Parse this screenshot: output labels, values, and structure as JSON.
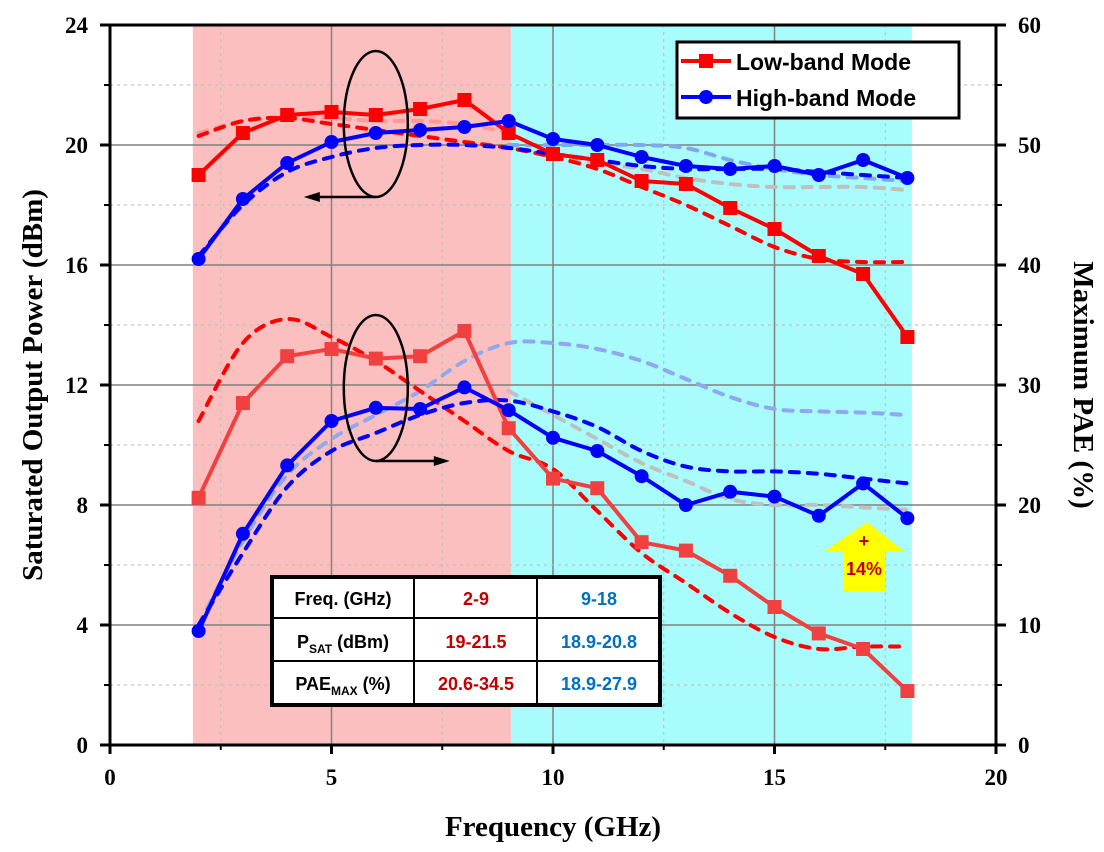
{
  "chart_data": {
    "type": "line",
    "title": "",
    "xlabel": "Frequency (GHz)",
    "ylabel": "Saturated Output Power (dBm)",
    "y2label": "Maximum PAE (%)",
    "xlim": [
      0,
      20
    ],
    "ylim": [
      0,
      24
    ],
    "y2lim": [
      0,
      60
    ],
    "xticks": [
      "0",
      "5",
      "10",
      "15",
      "20"
    ],
    "xtick_values": [
      0,
      5,
      10,
      15,
      20
    ],
    "yticks": [
      "0",
      "4",
      "8",
      "12",
      "16",
      "20",
      "24"
    ],
    "ytick_values": [
      0,
      4,
      8,
      12,
      16,
      20,
      24
    ],
    "y2ticks": [
      "0",
      "10",
      "20",
      "30",
      "40",
      "50",
      "60"
    ],
    "y2tick_values": [
      0,
      10,
      20,
      30,
      40,
      50,
      60
    ],
    "grid": true,
    "legend_position": "top-right",
    "bands": [
      {
        "name": "low-band-region",
        "x_range": [
          1.87,
          9.05
        ],
        "color": "#fcbfbf"
      },
      {
        "name": "high-band-region",
        "x_range": [
          9.05,
          18.1
        ],
        "color": "#a8fcfc"
      }
    ],
    "x": [
      2,
      3,
      4,
      5,
      6,
      7,
      8,
      9,
      10,
      11,
      12,
      13,
      14,
      15,
      16,
      17,
      18
    ],
    "series": [
      {
        "name": "Low-band Mode",
        "legend": true,
        "quantity": "Psat",
        "axis": "left",
        "color": "#ff0000",
        "marker": "square",
        "style": "solid",
        "values": [
          19.0,
          20.4,
          21.0,
          21.1,
          21.0,
          21.2,
          21.5,
          20.4,
          19.7,
          19.5,
          18.8,
          18.7,
          17.9,
          17.2,
          16.3,
          15.7,
          13.6
        ]
      },
      {
        "name": "High-band Mode",
        "legend": true,
        "quantity": "Psat",
        "axis": "left",
        "color": "#0000ff",
        "marker": "circle",
        "style": "solid",
        "values": [
          16.2,
          18.2,
          19.4,
          20.1,
          20.4,
          20.5,
          20.6,
          20.8,
          20.2,
          20.0,
          19.6,
          19.3,
          19.2,
          19.3,
          19.0,
          19.5,
          18.9
        ]
      },
      {
        "name": "Low-band Mode PAE",
        "legend": false,
        "quantity": "PAE",
        "axis": "right",
        "color": "#f04040",
        "marker": "square",
        "style": "solid",
        "values": [
          20.6,
          28.5,
          32.4,
          33.0,
          32.2,
          32.4,
          34.5,
          26.4,
          22.2,
          21.4,
          16.9,
          16.2,
          14.1,
          11.5,
          9.3,
          8.0,
          4.5
        ]
      },
      {
        "name": "High-band Mode PAE",
        "legend": false,
        "quantity": "PAE",
        "axis": "right",
        "color": "#0000ff",
        "marker": "circle",
        "style": "solid",
        "values": [
          9.5,
          17.6,
          23.3,
          27.0,
          28.1,
          28.0,
          29.8,
          27.9,
          25.6,
          24.5,
          22.4,
          20.0,
          21.1,
          20.7,
          19.1,
          21.8,
          18.9
        ]
      },
      {
        "name": "Low-band Psat (simulated)",
        "legend": false,
        "quantity": "Psat",
        "axis": "left",
        "color": "#ff0000",
        "style": "dashed",
        "x": [
          2,
          3,
          4,
          5,
          6,
          7,
          8,
          9,
          10,
          11,
          12,
          13,
          14,
          15,
          16,
          17,
          18
        ],
        "values": [
          20.3,
          20.8,
          20.9,
          20.7,
          20.5,
          20.3,
          20.1,
          19.9,
          19.6,
          19.2,
          18.6,
          18.0,
          17.3,
          16.6,
          16.2,
          16.1,
          16.1
        ]
      },
      {
        "name": "High-band Psat (simulated)",
        "legend": false,
        "quantity": "Psat",
        "axis": "left",
        "color": "#0000ff",
        "style": "dashed",
        "x": [
          2,
          3,
          4,
          5,
          6,
          7,
          8,
          9,
          10,
          11,
          12,
          13,
          14,
          15,
          16,
          17,
          18
        ],
        "values": [
          16.3,
          18.0,
          19.1,
          19.6,
          19.9,
          20.0,
          20.0,
          19.9,
          19.7,
          19.5,
          19.3,
          19.2,
          19.2,
          19.2,
          19.1,
          19.0,
          18.9
        ]
      },
      {
        "name": "Low-band Psat (ref.)",
        "legend": false,
        "quantity": "Psat",
        "axis": "left",
        "color": "#ff9999",
        "style": "dashed",
        "x": [
          2,
          3,
          4,
          5,
          6,
          7,
          8,
          9
        ],
        "values": [
          20.4,
          20.8,
          20.9,
          20.9,
          20.8,
          20.8,
          20.7,
          20.4
        ]
      },
      {
        "name": "High-band Psat (ref.)",
        "legend": false,
        "quantity": "Psat",
        "axis": "left",
        "color": "#7fa8f0",
        "style": "dashed",
        "x": [
          9,
          10,
          11,
          12,
          13,
          14,
          15,
          16,
          17,
          18
        ],
        "values": [
          20.0,
          20.0,
          20.0,
          20.0,
          19.9,
          19.5,
          19.2,
          19.0,
          18.9,
          18.8
        ]
      },
      {
        "name": "Grey Psat (ref.)",
        "legend": false,
        "quantity": "Psat",
        "axis": "left",
        "color": "#c0c0c0",
        "style": "dashed",
        "x": [
          10,
          11,
          12,
          13,
          14,
          15,
          16,
          17,
          18
        ],
        "values": [
          19.6,
          19.4,
          19.2,
          18.9,
          18.7,
          18.6,
          18.6,
          18.6,
          18.5
        ]
      },
      {
        "name": "Low-band PAE (simulated)",
        "legend": false,
        "quantity": "PAE",
        "axis": "right",
        "color": "#ff0000",
        "style": "dashed",
        "x": [
          2,
          3,
          4,
          5,
          6,
          7,
          8,
          9,
          10,
          11,
          12,
          13,
          14,
          15,
          16,
          17,
          18
        ],
        "values": [
          27.0,
          33.5,
          35.5,
          34.0,
          32.0,
          29.5,
          27.0,
          24.5,
          23.0,
          19.5,
          16.0,
          13.5,
          11.0,
          9.0,
          8.0,
          8.2,
          8.2
        ]
      },
      {
        "name": "High-band PAE (simulated)",
        "legend": false,
        "quantity": "PAE",
        "axis": "right",
        "color": "#0000ff",
        "style": "dashed",
        "x": [
          2,
          3,
          4,
          5,
          6,
          7,
          8,
          9,
          10,
          11,
          12,
          13,
          14,
          15,
          16,
          17,
          18
        ],
        "values": [
          10.0,
          16.0,
          21.5,
          24.5,
          26.0,
          27.5,
          28.5,
          28.7,
          27.8,
          26.5,
          24.5,
          23.2,
          22.8,
          22.8,
          22.6,
          22.2,
          21.8
        ]
      },
      {
        "name": "Low-band PAE (ref.)",
        "legend": false,
        "quantity": "PAE",
        "axis": "right",
        "color": "#ff9999",
        "style": "dashed",
        "x": [
          2,
          3,
          4,
          5,
          6,
          7,
          8,
          9
        ],
        "values": [
          27.5,
          33.0,
          35.5,
          36.3,
          35.8,
          34.0,
          30.5,
          28.5
        ]
      },
      {
        "name": "High-band PAE (ref.)",
        "legend": false,
        "quantity": "PAE",
        "axis": "right",
        "color": "#8fa8ee",
        "style": "dashed",
        "x": [
          2,
          3,
          4,
          5,
          6,
          7,
          8,
          9,
          10,
          11,
          12,
          13,
          14,
          15,
          16,
          17,
          18
        ],
        "values": [
          10.0,
          17.0,
          22.5,
          25.5,
          27.5,
          29.5,
          32.0,
          33.5,
          33.5,
          33.0,
          32.0,
          30.5,
          29.0,
          28.0,
          27.8,
          27.7,
          27.5
        ]
      },
      {
        "name": "Grey PAE (ref.)",
        "legend": false,
        "quantity": "PAE",
        "axis": "right",
        "color": "#c0c0c0",
        "style": "dashed",
        "x": [
          9,
          10,
          11,
          12,
          13,
          14,
          15,
          16,
          17,
          18
        ],
        "values": [
          29.5,
          27.5,
          25.5,
          23.5,
          22.0,
          20.5,
          20.0,
          20.0,
          19.8,
          19.6
        ]
      }
    ],
    "annotations": [
      {
        "type": "ellipse",
        "name": "psat-group-ellipse",
        "center": [
          6.0,
          20.7
        ],
        "arrow_direction": "left"
      },
      {
        "type": "ellipse",
        "name": "pae-group-ellipse",
        "center": [
          6.0,
          11.9
        ],
        "arrow_direction": "right"
      },
      {
        "type": "arrow-up",
        "name": "pae-improvement-arrow",
        "text_line1": "+",
        "text_line2": "14%",
        "color": "#ffff00",
        "text_color": "#c00000"
      }
    ],
    "summary_table": {
      "headers": [
        "Freq. (GHz)",
        "2-9",
        "9-18"
      ],
      "rows": [
        {
          "label_main": "P",
          "label_sub": "SAT",
          "label_rest": " (dBm)",
          "low": "19-21.5",
          "high": "18.9-20.8"
        },
        {
          "label_main": "PAE",
          "label_sub": "MAX",
          "label_rest": " (%)",
          "low": "20.6-34.5",
          "high": "18.9-27.9"
        }
      ],
      "low_color": "#c00000",
      "high_color": "#0070c0"
    }
  }
}
